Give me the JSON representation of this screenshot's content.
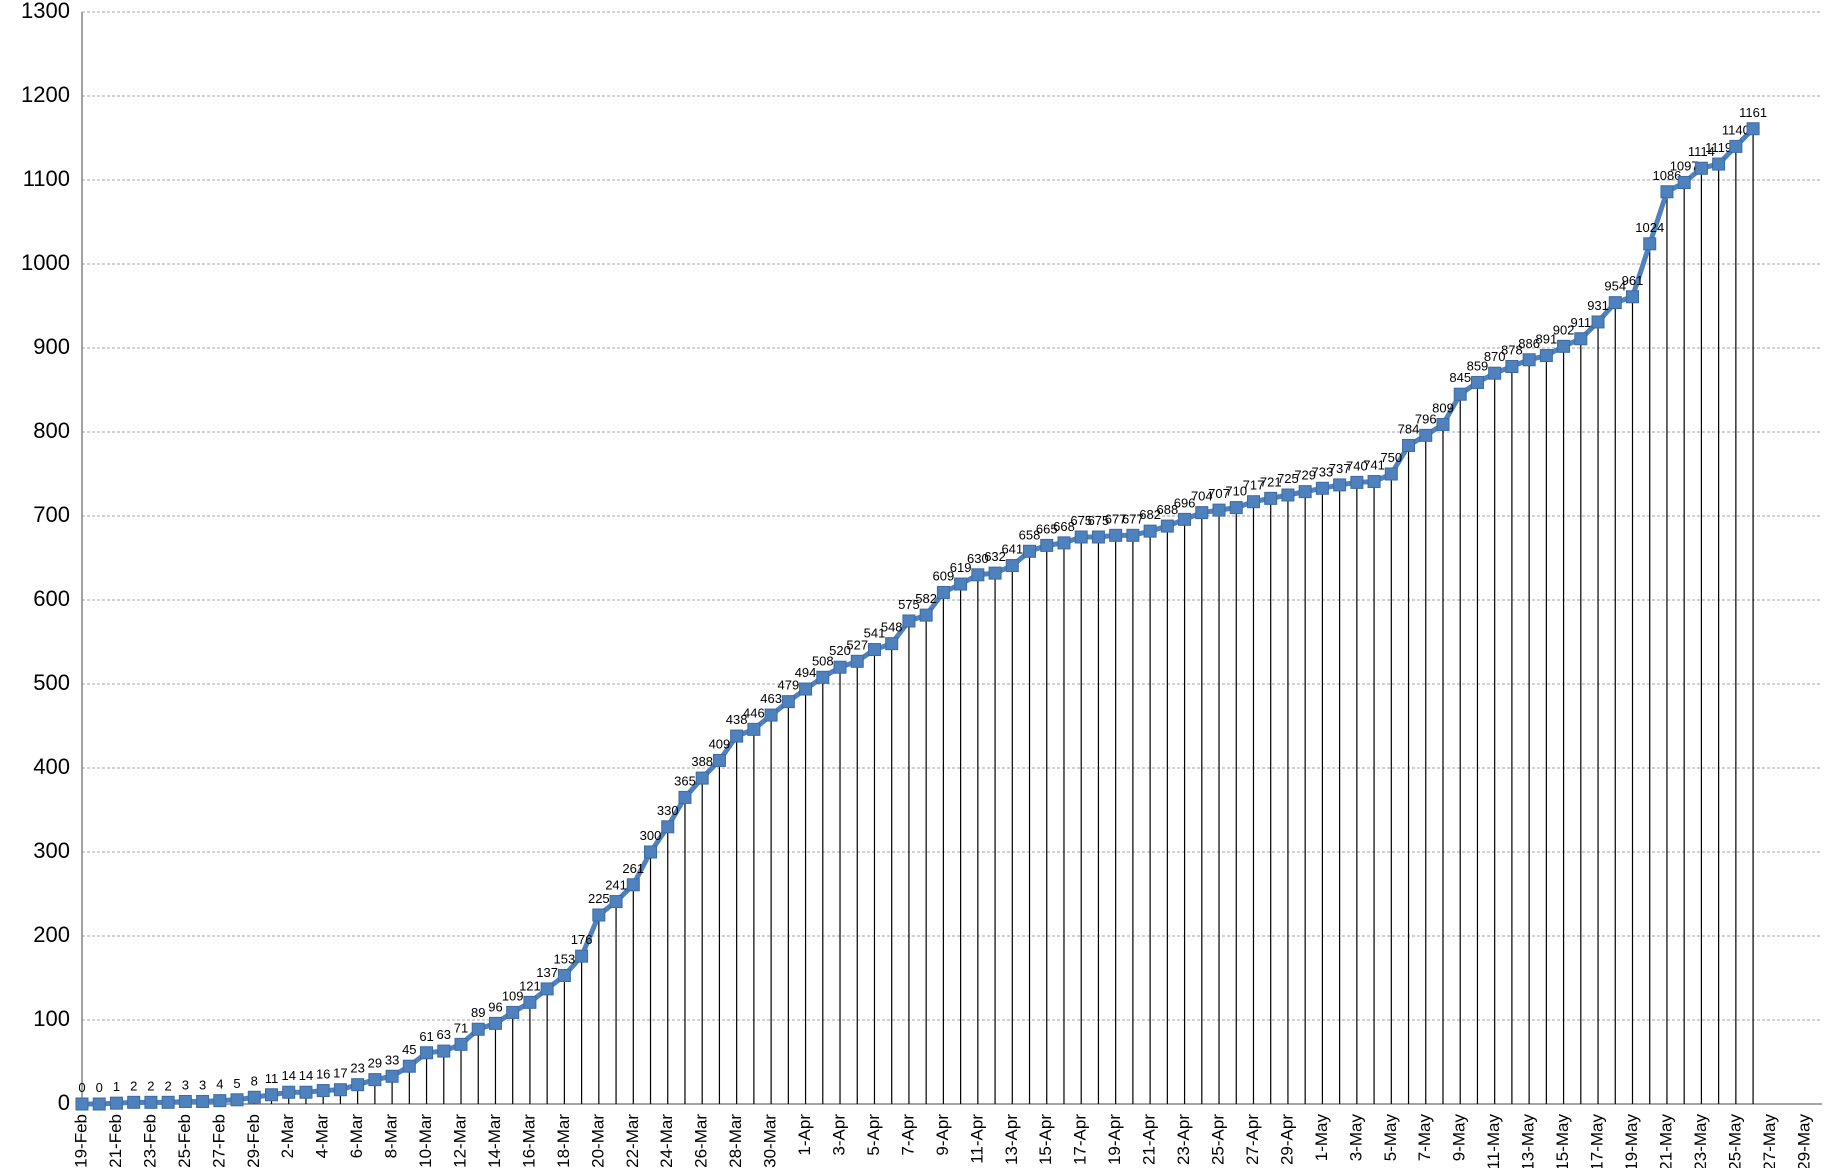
{
  "chart_data": {
    "type": "line",
    "categories": [
      "19-Feb",
      null,
      "21-Feb",
      null,
      "23-Feb",
      null,
      "25-Feb",
      null,
      "27-Feb",
      null,
      "29-Feb",
      null,
      "2-Mar",
      null,
      "4-Mar",
      null,
      "6-Mar",
      null,
      "8-Mar",
      null,
      "10-Mar",
      null,
      "12-Mar",
      null,
      "14-Mar",
      null,
      "16-Mar",
      null,
      "18-Mar",
      null,
      "20-Mar",
      null,
      "22-Mar",
      null,
      "24-Mar",
      null,
      "26-Mar",
      null,
      "28-Mar",
      null,
      "30-Mar",
      null,
      "1-Apr",
      null,
      "3-Apr",
      null,
      "5-Apr",
      null,
      "7-Apr",
      null,
      "9-Apr",
      null,
      "11-Apr",
      null,
      "13-Apr",
      null,
      "15-Apr",
      null,
      "17-Apr",
      null,
      "19-Apr",
      null,
      "21-Apr",
      null,
      "23-Apr",
      null,
      "25-Apr",
      null,
      "27-Apr",
      null,
      "29-Apr",
      null,
      "1-May",
      null,
      "3-May",
      null,
      "5-May",
      null,
      "7-May",
      null,
      "9-May",
      null,
      "11-May",
      null,
      "13-May",
      null,
      "15-May",
      null,
      "17-May",
      null,
      "19-May",
      null,
      "21-May",
      null,
      "23-May",
      null,
      "25-May",
      null,
      "27-May",
      null,
      "29-May"
    ],
    "series": [
      {
        "color": "#4f81bd",
        "values": [
          0,
          0,
          1,
          2,
          2,
          2,
          3,
          3,
          4,
          5,
          8,
          11,
          14,
          14,
          16,
          17,
          23,
          29,
          33,
          45,
          61,
          63,
          71,
          89,
          96,
          109,
          121,
          137,
          153,
          176,
          225,
          241,
          261,
          300,
          330,
          365,
          388,
          409,
          438,
          446,
          463,
          479,
          494,
          508,
          520,
          527,
          541,
          548,
          575,
          582,
          609,
          619,
          630,
          632,
          641,
          658,
          665,
          668,
          675,
          675,
          677,
          677,
          682,
          688,
          696,
          704,
          707,
          710,
          717,
          721,
          725,
          729,
          733,
          737,
          740,
          741,
          750,
          784,
          796,
          809,
          845,
          859,
          870,
          878,
          886,
          891,
          902,
          911,
          931,
          954,
          961,
          1024,
          1086,
          1097,
          1114,
          1119,
          1140,
          1161,
          null,
          null,
          null
        ]
      }
    ],
    "ylim": [
      0,
      1300
    ],
    "yticks": [
      0,
      100,
      200,
      300,
      400,
      500,
      600,
      700,
      800,
      900,
      1000,
      1100,
      1200,
      1300
    ],
    "grid": true
  }
}
